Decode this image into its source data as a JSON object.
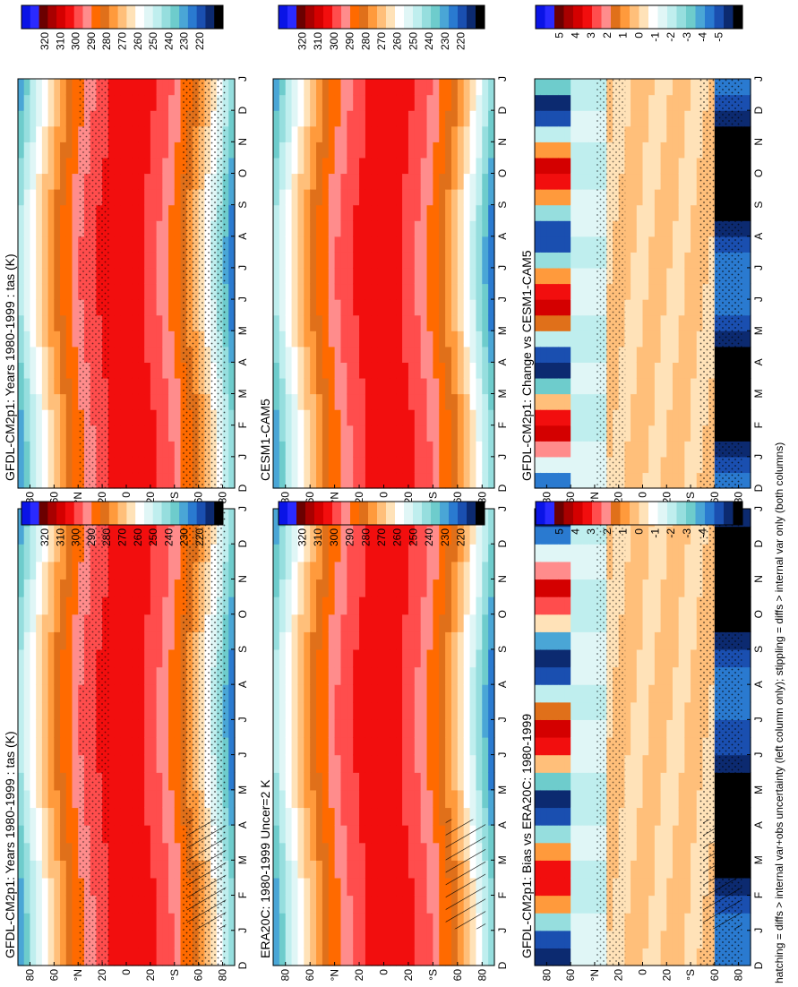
{
  "figure": {
    "footnote": "hatching = diffs > internal var+obs uncertainty (left column only); stippling = diffs > internal var only (both columns)"
  },
  "scales": {
    "abs": {
      "labels": [
        "320",
        "310",
        "300",
        "290",
        "280",
        "270",
        "260",
        "250",
        "240",
        "230",
        "220"
      ],
      "colors": [
        "#0a14e6",
        "#2a2aff",
        "#6b0000",
        "#a80000",
        "#d40000",
        "#f20e0e",
        "#ff4d4d",
        "#ff8c8c",
        "#ff6a00",
        "#e0701a",
        "#ff9a3c",
        "#ffbf7a",
        "#ffe2b8",
        "#ffffff",
        "#e0f6f6",
        "#bfeeee",
        "#96dede",
        "#6ecccc",
        "#4aa6d6",
        "#2a7ad0",
        "#1a4fb0",
        "#0c2a70",
        "#000000"
      ]
    },
    "diff": {
      "labels": [
        "5",
        "4",
        "3",
        "2",
        "1",
        "0",
        "-1",
        "-2",
        "-3",
        "-4",
        "-5"
      ],
      "colors": [
        "#0a14e6",
        "#2a2aff",
        "#6b0000",
        "#a80000",
        "#d40000",
        "#f20e0e",
        "#ff4d4d",
        "#ff8c8c",
        "#e0701a",
        "#ff9a3c",
        "#ffbf7a",
        "#ffe2b8",
        "#ffffff",
        "#e0f6f6",
        "#bfeeee",
        "#96dede",
        "#6ecccc",
        "#4aa6d6",
        "#2a7ad0",
        "#1a4fb0",
        "#0c2a70",
        "#000000"
      ]
    }
  },
  "chart_data": [
    {
      "type": "heatmap",
      "title": "GFDL-CM2p1: Years 1980-1999 : tas (K)",
      "variable": "tas (K)",
      "x_ticks": [
        "D",
        "J",
        "F",
        "M",
        "A",
        "M",
        "J",
        "J",
        "A",
        "S",
        "O",
        "N",
        "D",
        "J"
      ],
      "y_ticks": [
        "80",
        "60",
        "°N",
        "20",
        "0",
        "20",
        "°S",
        "60",
        "80"
      ],
      "scale": "abs",
      "values_K_by_lat_band_jan_jul": {
        "80N": [
          250,
          272
        ],
        "40N": [
          280,
          295
        ],
        "0": [
          299,
          300
        ],
        "40S": [
          290,
          282
        ],
        "80S": [
          250,
          225
        ]
      },
      "hatching": true,
      "stippling": true
    },
    {
      "type": "heatmap",
      "title": "GFDL-CM2p1: Years 1980-1999 : tas (K)",
      "variable": "tas (K)",
      "x_ticks": [
        "D",
        "J",
        "F",
        "M",
        "A",
        "M",
        "J",
        "J",
        "A",
        "S",
        "O",
        "N",
        "D",
        "J"
      ],
      "y_ticks": [
        "80",
        "60",
        "°N",
        "20",
        "0",
        "20",
        "°S",
        "60",
        "80"
      ],
      "scale": "abs",
      "stippling": true
    },
    {
      "type": "heatmap",
      "title": "ERA20C: 1980-1999 Uncer=2 K",
      "x_ticks": [
        "D",
        "J",
        "F",
        "M",
        "A",
        "M",
        "J",
        "J",
        "A",
        "S",
        "O",
        "N",
        "D",
        "J"
      ],
      "y_ticks": [
        "80",
        "60",
        "°N",
        "20",
        "0",
        "20",
        "°S",
        "60",
        "80"
      ],
      "scale": "abs",
      "hatching": true
    },
    {
      "type": "heatmap",
      "title": "CESM1-CAM5",
      "x_ticks": [
        "D",
        "J",
        "F",
        "M",
        "A",
        "M",
        "J",
        "J",
        "A",
        "S",
        "O",
        "N",
        "D",
        "J"
      ],
      "y_ticks": [
        "80",
        "60",
        "°N",
        "20",
        "0",
        "20",
        "°S",
        "60",
        "80"
      ],
      "scale": "abs"
    },
    {
      "type": "heatmap",
      "title": "GFDL-CM2p1: Bias vs ERA20C: 1980-1999",
      "x_ticks": [
        "D",
        "J",
        "F",
        "M",
        "A",
        "M",
        "J",
        "J",
        "A",
        "S",
        "O",
        "N",
        "D",
        "J"
      ],
      "y_ticks": [
        "80",
        "60",
        "°N",
        "20",
        "0",
        "20",
        "°S",
        "60",
        "80"
      ],
      "scale": "diff",
      "hatching": true,
      "stippling": true
    },
    {
      "type": "heatmap",
      "title": "GFDL-CM2p1: Change vs CESM1-CAM5",
      "x_ticks": [
        "D",
        "J",
        "F",
        "M",
        "A",
        "M",
        "J",
        "J",
        "A",
        "S",
        "O",
        "N",
        "D",
        "J"
      ],
      "y_ticks": [
        "80",
        "60",
        "°N",
        "20",
        "0",
        "20",
        "°S",
        "60",
        "80"
      ],
      "scale": "diff",
      "stippling": true
    }
  ]
}
